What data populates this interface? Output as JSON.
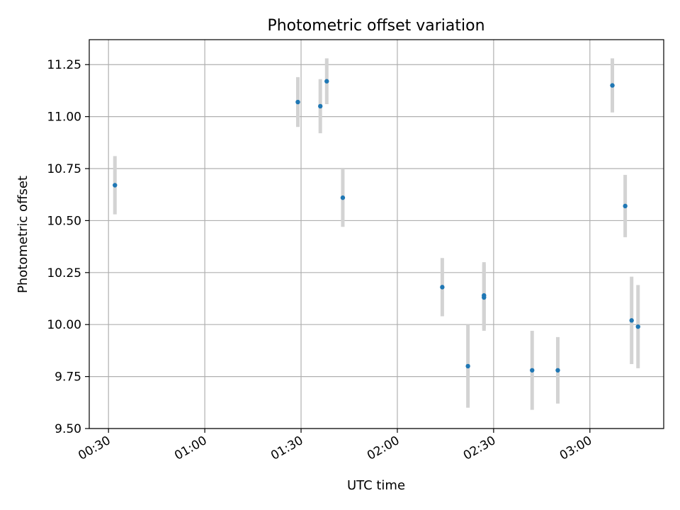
{
  "chart_data": {
    "type": "scatter",
    "title": "Photometric offset variation",
    "xlabel": "UTC time",
    "ylabel": "Photometric offset",
    "xlim": [
      "00:24",
      "03:23"
    ],
    "ylim": [
      9.5,
      11.37
    ],
    "grid": true,
    "x_ticks": [
      "00:30",
      "01:00",
      "01:30",
      "02:00",
      "02:30",
      "03:00"
    ],
    "y_ticks": [
      "9.50",
      "9.75",
      "10.00",
      "10.25",
      "10.50",
      "10.75",
      "11.00",
      "11.25"
    ],
    "colors": {
      "marker": "#1f77b4",
      "errorbar": "#d3d3d3",
      "grid": "#b0b0b0"
    },
    "points": [
      {
        "x": "00:32",
        "y": 10.67,
        "yerr": 0.14
      },
      {
        "x": "01:29",
        "y": 11.07,
        "yerr": 0.12
      },
      {
        "x": "01:36",
        "y": 11.05,
        "yerr": 0.13
      },
      {
        "x": "01:38",
        "y": 11.17,
        "yerr": 0.11
      },
      {
        "x": "01:43",
        "y": 10.61,
        "yerr": 0.14
      },
      {
        "x": "02:14",
        "y": 10.18,
        "yerr": 0.14
      },
      {
        "x": "02:22",
        "y": 9.8,
        "yerr": 0.2
      },
      {
        "x": "02:27",
        "y": 10.13,
        "yerr": 0.16
      },
      {
        "x": "02:27",
        "y": 10.14,
        "yerr": 0.16
      },
      {
        "x": "02:42",
        "y": 9.78,
        "yerr": 0.19
      },
      {
        "x": "02:50",
        "y": 9.78,
        "yerr": 0.16
      },
      {
        "x": "03:07",
        "y": 11.15,
        "yerr": 0.13
      },
      {
        "x": "03:11",
        "y": 10.57,
        "yerr": 0.15
      },
      {
        "x": "03:13",
        "y": 10.02,
        "yerr": 0.21
      },
      {
        "x": "03:15",
        "y": 9.99,
        "yerr": 0.2
      }
    ]
  }
}
